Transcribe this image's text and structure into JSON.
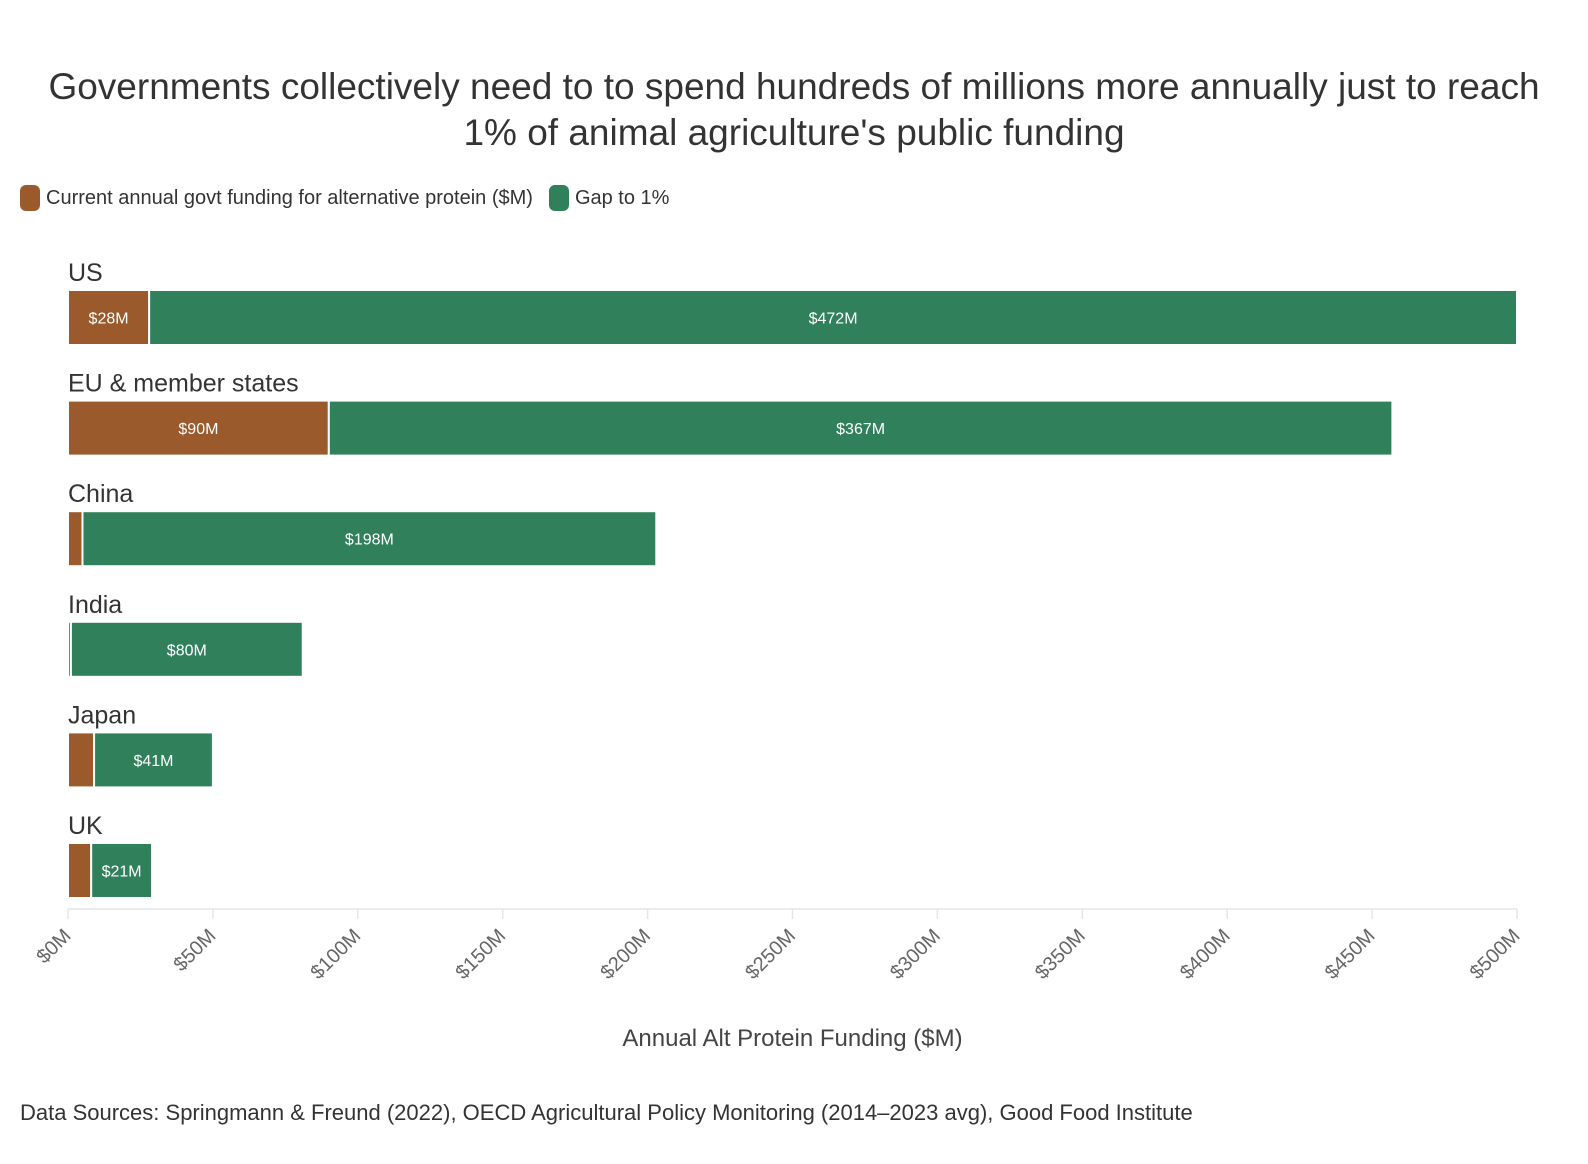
{
  "chart_data": {
    "type": "bar",
    "orientation": "horizontal",
    "stacked": true,
    "title": "Governments collectively need to to spend hundreds of millions more annually just to reach 1% of animal agriculture's public funding",
    "categories": [
      "US",
      "EU & member states",
      "China",
      "India",
      "Japan",
      "UK"
    ],
    "series": [
      {
        "name": "Current annual govt funding for alternative protein ($M)",
        "color": "#9a5a2c",
        "values": [
          28,
          90,
          5,
          1,
          9,
          8
        ],
        "labels": [
          "$28M",
          "$90M",
          "",
          "",
          "",
          ""
        ]
      },
      {
        "name": "Gap to 1%",
        "color": "#31805c",
        "values": [
          472,
          367,
          198,
          80,
          41,
          21
        ],
        "labels": [
          "$472M",
          "$367M",
          "$198M",
          "$80M",
          "$41M",
          "$21M"
        ]
      }
    ],
    "xlabel": "Annual Alt Protein Funding ($M)",
    "xlim": [
      0,
      500
    ],
    "xticks": [
      0,
      50,
      100,
      150,
      200,
      250,
      300,
      350,
      400,
      450,
      500
    ],
    "xtick_labels": [
      "$0M",
      "$50M",
      "$100M",
      "$150M",
      "$200M",
      "$250M",
      "$300M",
      "$350M",
      "$400M",
      "$450M",
      "$500M"
    ],
    "legend_position": "top-left",
    "grid": false
  },
  "source": "Data Sources: Springmann & Freund (2022), OECD Agricultural Policy Monitoring (2014–2023 avg), Good Food Institute"
}
